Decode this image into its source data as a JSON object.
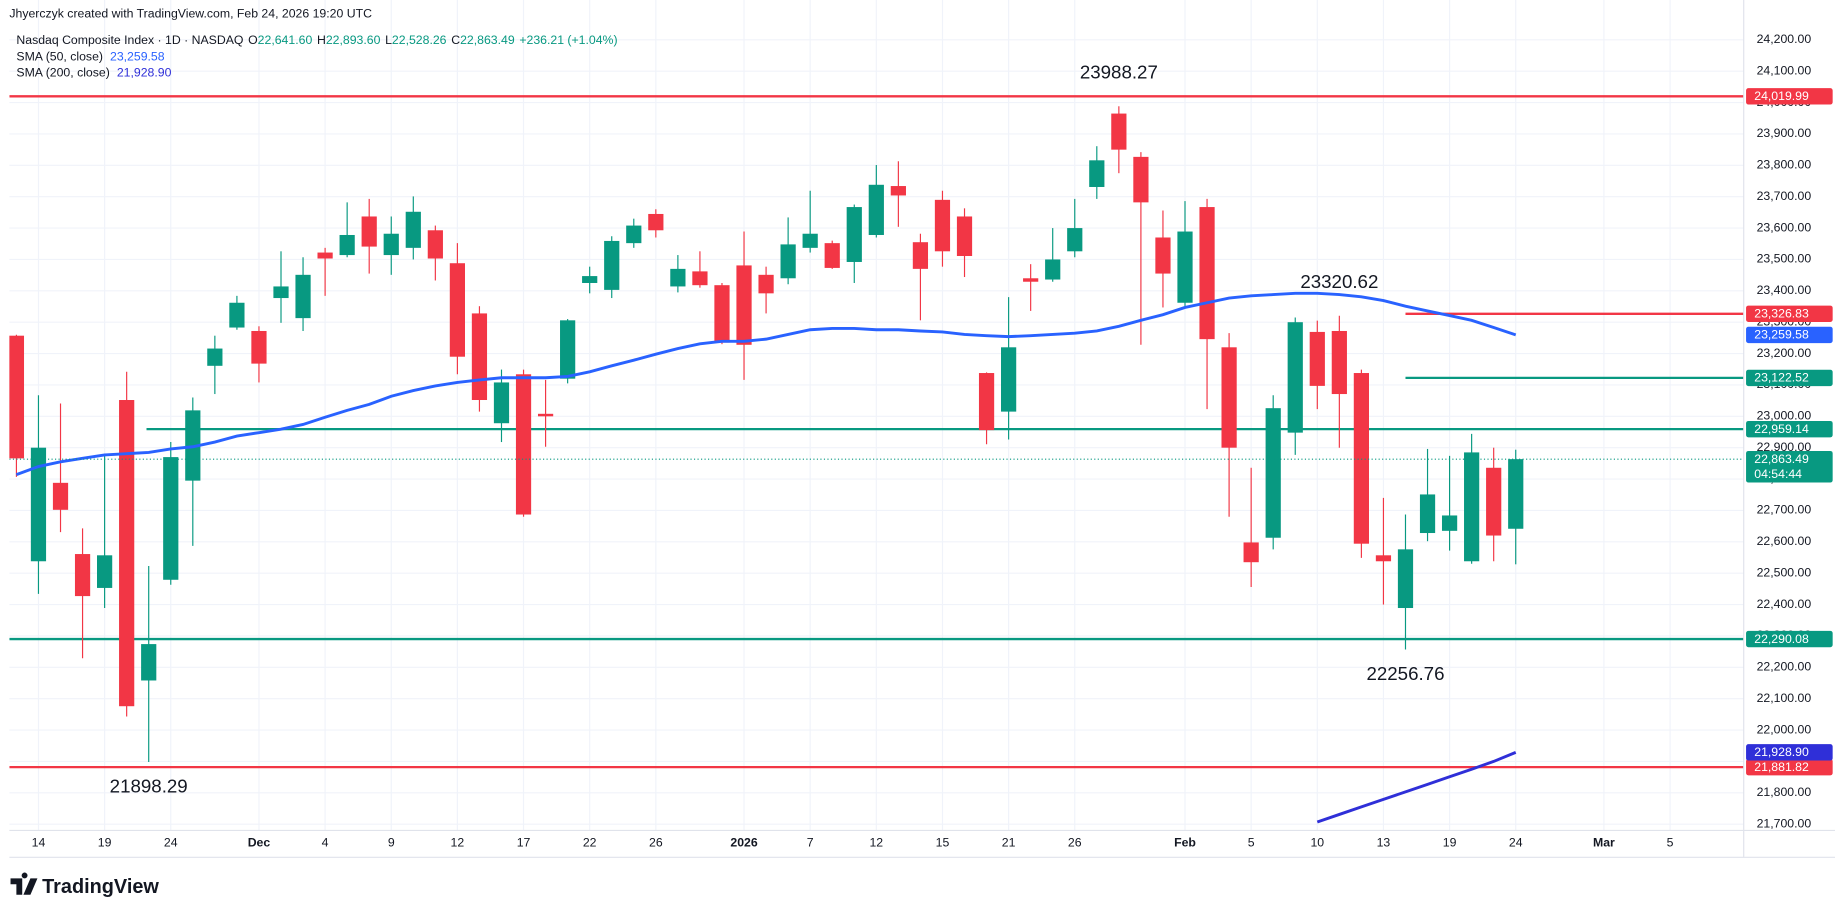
{
  "header": {
    "credit": "Jhyerczyk created with TradingView.com, Feb 24, 2026 19:20 UTC",
    "symbol": "Nasdaq Composite Index · 1D · NASDAQ",
    "ohlc": [
      {
        "key": "O",
        "label": "22,641.60"
      },
      {
        "key": "H",
        "label": "22,893.60"
      },
      {
        "key": "L",
        "label": "22,528.26"
      },
      {
        "key": "C",
        "label": "22,863.49"
      }
    ],
    "change": "+236.21 (+1.04%)"
  },
  "branding": "TradingView",
  "chart_data": {
    "type": "candlestick",
    "up_color": "#089981",
    "down_color": "#f23645",
    "grid": true,
    "xlim": [
      -0.32,
      78.34
    ],
    "xticks": [
      {
        "value": 1,
        "label": "14"
      },
      {
        "value": 4,
        "label": "19"
      },
      {
        "value": 7,
        "label": "24"
      },
      {
        "value": 11,
        "label": "Dec"
      },
      {
        "value": 14,
        "label": "4"
      },
      {
        "value": 17,
        "label": "9"
      },
      {
        "value": 20,
        "label": "12"
      },
      {
        "value": 23,
        "label": "17"
      },
      {
        "value": 26,
        "label": "22"
      },
      {
        "value": 29,
        "label": "26"
      },
      {
        "value": 33,
        "label": "2026"
      },
      {
        "value": 36,
        "label": "7"
      },
      {
        "value": 39,
        "label": "12"
      },
      {
        "value": 42,
        "label": "15"
      },
      {
        "value": 45,
        "label": "21"
      },
      {
        "value": 48,
        "label": "26"
      },
      {
        "value": 53,
        "label": "Feb"
      },
      {
        "value": 56,
        "label": "5"
      },
      {
        "value": 59,
        "label": "10"
      },
      {
        "value": 62,
        "label": "13"
      },
      {
        "value": 65,
        "label": "19"
      },
      {
        "value": 68,
        "label": "24"
      },
      {
        "value": 72,
        "label": "Mar"
      },
      {
        "value": 75,
        "label": "5"
      }
    ],
    "ylim": [
      21680,
      24327
    ],
    "yticks": [
      {
        "value": 21700,
        "label": "21,700.00"
      },
      {
        "value": 21800,
        "label": "21,800.00"
      },
      {
        "value": 21900,
        "label": "21,900.00"
      },
      {
        "value": 22000,
        "label": "22,000.00"
      },
      {
        "value": 22100,
        "label": "22,100.00"
      },
      {
        "value": 22200,
        "label": "22,200.00"
      },
      {
        "value": 22300,
        "label": "22,300.00"
      },
      {
        "value": 22400,
        "label": "22,400.00"
      },
      {
        "value": 22500,
        "label": "22,500.00"
      },
      {
        "value": 22600,
        "label": "22,600.00"
      },
      {
        "value": 22700,
        "label": "22,700.00"
      },
      {
        "value": 22800,
        "label": "22,800.00"
      },
      {
        "value": 22900,
        "label": "22,900.00"
      },
      {
        "value": 23000,
        "label": "23,000.00"
      },
      {
        "value": 23100,
        "label": "23,100.00"
      },
      {
        "value": 23200,
        "label": "23,200.00"
      },
      {
        "value": 23300,
        "label": "23,300.00"
      },
      {
        "value": 23400,
        "label": "23,400.00"
      },
      {
        "value": 23500,
        "label": "23,500.00"
      },
      {
        "value": 23600,
        "label": "23,600.00"
      },
      {
        "value": 23700,
        "label": "23,700.00"
      },
      {
        "value": 23800,
        "label": "23,800.00"
      },
      {
        "value": 23900,
        "label": "23,900.00"
      },
      {
        "value": 24000,
        "label": "24,000.00"
      },
      {
        "value": 24100,
        "label": "24,100.00"
      },
      {
        "value": 24200,
        "label": "24,200.00"
      }
    ],
    "open": [
      23257,
      22538,
      22788,
      22561,
      22453,
      23052,
      22158,
      22479,
      22795,
      23161,
      23283,
      23272,
      23377,
      23313,
      23522,
      23514,
      23637,
      23514,
      23537,
      23593,
      23488,
      23328,
      22978,
      23134,
      23008,
      23120,
      23425,
      23403,
      23552,
      23645,
      23414,
      23462,
      23418,
      23481,
      23451,
      23440,
      23537,
      23552,
      23492,
      23578,
      23734,
      23555,
      23690,
      23637,
      23138,
      23015,
      23440,
      23436,
      23526,
      23731,
      23965,
      23827,
      23570,
      23362,
      23667,
      23220,
      22598,
      22613,
      22948,
      23269,
      23272,
      23138,
      22557,
      22389,
      22628,
      22635,
      22538,
      22836,
      22641.6
    ],
    "high": [
      23260,
      23067,
      23041,
      22643,
      22881,
      23142,
      22523,
      22918,
      23060,
      23257,
      23384,
      23287,
      23526,
      23507,
      23537,
      23682,
      23693,
      23637,
      23701,
      23608,
      23552,
      23351,
      23149,
      23149,
      23116,
      23310,
      23477,
      23574,
      23630,
      23660,
      23514,
      23526,
      23425,
      23589,
      23477,
      23634,
      23719,
      23560,
      23675,
      23801,
      23813,
      23582,
      23719,
      23663,
      23140,
      23380,
      23485,
      23600,
      23693,
      23861,
      23988.27,
      23842,
      23656,
      23686,
      23693,
      23265,
      22836,
      23067,
      23315,
      23305,
      23320.62,
      23149,
      22740,
      22687,
      22896,
      22874,
      22944,
      22900,
      22893.6
    ],
    "low": [
      22807,
      22434,
      22631,
      22229,
      22389,
      22043,
      21898.29,
      22463,
      22587,
      23071,
      23276,
      23108,
      23298,
      23272,
      23384,
      23507,
      23455,
      23451,
      23500,
      23433,
      23134,
      23015,
      22918,
      22680,
      22903,
      23105,
      23392,
      23377,
      23537,
      23570,
      23395,
      23410,
      23230,
      23116,
      23328,
      23421,
      23522,
      23470,
      23425,
      23570,
      23604,
      23306,
      23477,
      23444,
      22911,
      22926,
      23336,
      23429,
      23507,
      23693,
      23775,
      23228,
      23347,
      23351,
      23023,
      22680,
      22456,
      22576,
      22877,
      23023,
      22900,
      22549,
      22400,
      22256.76,
      22602,
      22572,
      22530,
      22538,
      22528.26
    ],
    "close": [
      22866,
      22900,
      22702,
      22427,
      22557,
      22076,
      22274,
      22870,
      23019,
      23216,
      23362,
      23168,
      23414,
      23451,
      23503,
      23578,
      23541,
      23582,
      23652,
      23503,
      23190,
      23052,
      23108,
      22687,
      23000,
      23306,
      23447,
      23559,
      23608,
      23593,
      23470,
      23418,
      23235,
      23228,
      23392,
      23548,
      23582,
      23473,
      23667,
      23738,
      23704,
      23470,
      23526,
      23511,
      22956,
      23220,
      23429,
      23500,
      23600,
      23816,
      23850,
      23682,
      23455,
      23589,
      23246,
      22900,
      22535,
      23026,
      23300,
      23097,
      23071,
      22594,
      22538,
      22576,
      22751,
      22684,
      22885,
      22620,
      22863.49
    ],
    "last_label": "22,863.49",
    "countdown": "04:54:44",
    "series": [
      {
        "name": "SMA (50, close)",
        "color": "#2962ff",
        "last_label": "23,259.58",
        "values": [
          22814,
          22840,
          22855,
          22866,
          22877,
          22881,
          22885,
          22896,
          22903,
          22918,
          22937,
          22948,
          22959,
          22974,
          22997,
          23019,
          23038,
          23064,
          23082,
          23097,
          23108,
          23116,
          23123,
          23123,
          23123,
          23127,
          23142,
          23161,
          23179,
          23198,
          23216,
          23231,
          23239,
          23239,
          23246,
          23261,
          23276,
          23280,
          23280,
          23276,
          23276,
          23272,
          23269,
          23261,
          23257,
          23254,
          23257,
          23261,
          23265,
          23272,
          23287,
          23306,
          23324,
          23347,
          23362,
          23377,
          23384,
          23388,
          23392,
          23392,
          23388,
          23381,
          23369,
          23351,
          23336,
          23321,
          23306,
          23283,
          23259.58
        ]
      },
      {
        "name": "SMA (200, close)",
        "color": "#2f2fd8",
        "last_label": "21,928.90",
        "values": [
          null,
          null,
          null,
          null,
          null,
          null,
          null,
          null,
          null,
          null,
          null,
          null,
          null,
          null,
          null,
          null,
          null,
          null,
          null,
          null,
          null,
          null,
          null,
          null,
          null,
          null,
          null,
          null,
          null,
          null,
          null,
          null,
          null,
          null,
          null,
          null,
          null,
          null,
          null,
          null,
          null,
          null,
          null,
          null,
          null,
          null,
          null,
          null,
          null,
          null,
          null,
          null,
          null,
          null,
          null,
          null,
          null,
          null,
          null,
          21707,
          21731,
          21755,
          21779,
          21803,
          21827,
          21851,
          21875,
          21900,
          21928.9
        ]
      }
    ],
    "levels": [
      {
        "value": 24019.99,
        "label": "24,019.99",
        "color": "#f23645"
      },
      {
        "value": 23326.83,
        "label": "23,326.83",
        "color": "#f23645",
        "x_start": 63
      },
      {
        "value": 23122.52,
        "label": "23,122.52",
        "color": "#089981",
        "x_start": 63
      },
      {
        "value": 22959.14,
        "label": "22,959.14",
        "color": "#089981",
        "x_start": 5.9
      },
      {
        "value": 22290.08,
        "label": "22,290.08",
        "color": "#089981"
      },
      {
        "value": 21881.82,
        "label": "21,881.82",
        "color": "#f23645"
      }
    ],
    "annotations": [
      {
        "value": 23988.27,
        "index": 50,
        "position": "above"
      },
      {
        "value": 23320.62,
        "index": 60,
        "position": "above"
      },
      {
        "value": 22256.76,
        "index": 63,
        "position": "below"
      },
      {
        "value": 21898.29,
        "index": 6,
        "position": "below"
      }
    ]
  }
}
